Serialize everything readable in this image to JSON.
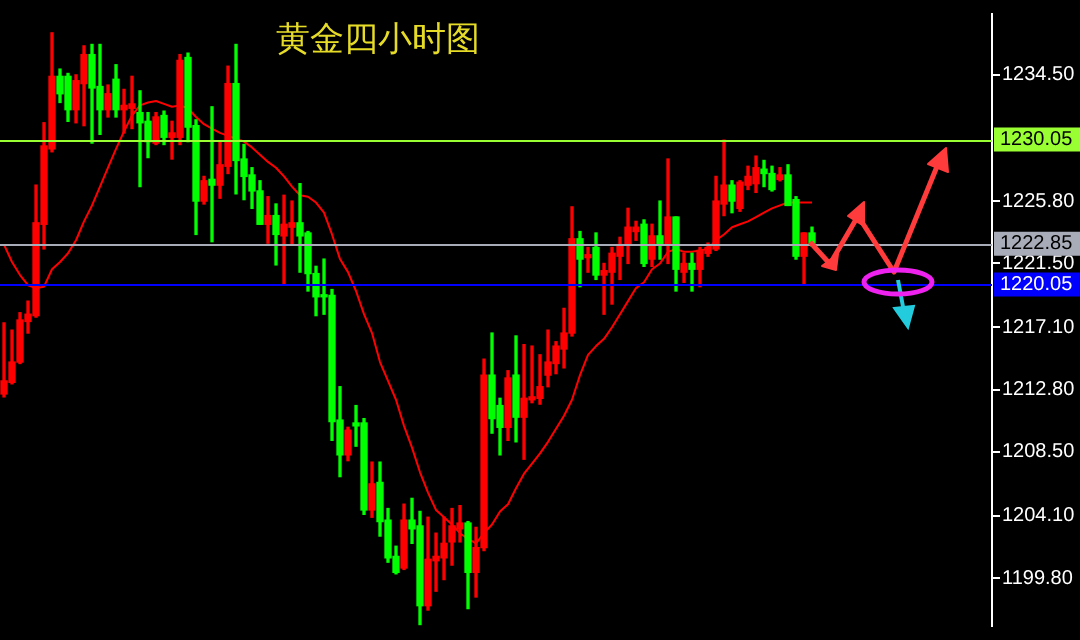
{
  "chart_data": {
    "type": "candlestick",
    "title": "黄金四小时图",
    "categories": [
      null,
      null,
      null,
      null,
      null,
      null,
      null,
      null,
      null,
      null,
      null,
      null,
      null,
      null,
      null,
      null,
      null,
      null,
      null,
      null,
      null,
      null,
      null,
      null,
      null,
      null,
      null,
      null,
      null,
      null,
      null,
      null,
      null,
      null,
      null,
      null,
      null,
      null,
      null,
      null,
      null,
      null,
      null,
      null,
      null,
      null,
      null,
      null,
      null,
      null,
      null,
      null,
      null,
      null,
      null,
      null,
      null,
      null,
      null,
      null,
      null,
      null,
      null,
      null,
      null,
      null,
      null,
      null,
      null,
      null,
      null,
      null,
      null,
      null,
      null,
      null,
      null,
      null,
      null,
      null,
      null,
      null,
      null,
      null,
      null,
      null,
      null,
      null,
      null,
      null,
      null,
      null,
      null,
      null,
      null,
      null,
      null,
      null,
      null,
      null,
      null,
      null,
      null,
      null,
      null,
      null,
      null,
      null,
      null,
      null,
      null,
      null,
      null,
      null,
      null,
      null,
      null,
      null,
      null,
      null,
      null,
      null,
      null,
      null
    ],
    "series": [
      {
        "type": "candlestick",
        "ohlc": [
          [
            1212.5,
            1217.4,
            1212.3,
            1213.4
          ],
          [
            1213.3,
            1216.9,
            1213.2,
            1214.7
          ],
          [
            1214.7,
            1218.1,
            1214.6,
            1217.6
          ],
          [
            1217.5,
            1218.9,
            1216.7,
            1218.0
          ],
          [
            1217.9,
            1226.9,
            1217.8,
            1224.3
          ],
          [
            1224.2,
            1231.2,
            1222.5,
            1229.6
          ],
          [
            1229.4,
            1237.4,
            1229.2,
            1234.4
          ],
          [
            1234.4,
            1234.9,
            1232.6,
            1233.2
          ],
          [
            1234.4,
            1234.6,
            1231.3,
            1232.1
          ],
          [
            1232.1,
            1234.5,
            1231.2,
            1234.1
          ],
          [
            1233.9,
            1236.5,
            1231.0,
            1235.9
          ],
          [
            1235.9,
            1236.6,
            1229.8,
            1233.6
          ],
          [
            1233.7,
            1236.6,
            1230.4,
            1232.1
          ],
          [
            1232.1,
            1233.8,
            1231.6,
            1233.2
          ],
          [
            1234.2,
            1235.2,
            1231.6,
            1232.1
          ],
          [
            1232.1,
            1233.5,
            1230.5,
            1232.4
          ],
          [
            1232.2,
            1234.4,
            1230.8,
            1232.5
          ],
          [
            1231.9,
            1233.4,
            1226.8,
            1231.2
          ],
          [
            1231.3,
            1231.9,
            1228.8,
            1229.9
          ],
          [
            1229.8,
            1231.9,
            1229.7,
            1231.6
          ],
          [
            1231.7,
            1232.0,
            1229.7,
            1230.2
          ],
          [
            1230.2,
            1231.3,
            1228.7,
            1230.5
          ],
          [
            1230.2,
            1235.9,
            1229.7,
            1235.5
          ],
          [
            1235.7,
            1236.0,
            1229.9,
            1230.9
          ],
          [
            1231.0,
            1231.4,
            1223.5,
            1225.8
          ],
          [
            1225.8,
            1227.5,
            1225.6,
            1227.2
          ],
          [
            1227.3,
            1232.3,
            1223.0,
            1226.9
          ],
          [
            1226.9,
            1229.9,
            1226.0,
            1228.3
          ],
          [
            1228.2,
            1235.1,
            1227.7,
            1233.9
          ],
          [
            1233.9,
            1236.6,
            1226.3,
            1228.6
          ],
          [
            1228.7,
            1229.7,
            1225.9,
            1227.5
          ],
          [
            1227.6,
            1228.1,
            1225.3,
            1226.5
          ],
          [
            1226.5,
            1227.2,
            1224.2,
            1224.2
          ],
          [
            1224.2,
            1226.1,
            1222.9,
            1224.8
          ],
          [
            1224.8,
            1225.6,
            1221.4,
            1223.5
          ],
          [
            1223.4,
            1226.2,
            1220.1,
            1224.2
          ],
          [
            1224.0,
            1225.8,
            1222.8,
            1224.3
          ],
          [
            1224.3,
            1227.0,
            1220.9,
            1223.4
          ],
          [
            1223.6,
            1223.7,
            1219.6,
            1220.8
          ],
          [
            1220.8,
            1221.3,
            1217.9,
            1219.2
          ],
          [
            1219.3,
            1221.8,
            1218.0,
            1219.2
          ],
          [
            1219.3,
            1219.7,
            1209.3,
            1210.6
          ],
          [
            1210.7,
            1213.0,
            1206.8,
            1208.3
          ],
          [
            1208.3,
            1210.2,
            1207.9,
            1210.0
          ],
          [
            1210.5,
            1211.7,
            1208.9,
            1210.3
          ],
          [
            1210.5,
            1210.8,
            1204.2,
            1204.5
          ],
          [
            1204.5,
            1207.8,
            1204.0,
            1206.3
          ],
          [
            1206.4,
            1207.8,
            1202.7,
            1203.7
          ],
          [
            1203.8,
            1204.6,
            1200.9,
            1201.2
          ],
          [
            1201.3,
            1202.0,
            1200.1,
            1200.2
          ],
          [
            1200.5,
            1204.9,
            1200.4,
            1203.8
          ],
          [
            1203.8,
            1205.3,
            1202.2,
            1203.2
          ],
          [
            1203.4,
            1204.4,
            1196.6,
            1197.9
          ],
          [
            1197.9,
            1204.0,
            1197.6,
            1201.1
          ],
          [
            1201.0,
            1202.9,
            1198.9,
            1201.3
          ],
          [
            1201.2,
            1204.0,
            1199.7,
            1202.2
          ],
          [
            1202.3,
            1204.6,
            1200.7,
            1203.4
          ],
          [
            1203.2,
            1204.8,
            1202.3,
            1203.6
          ],
          [
            1203.6,
            1203.7,
            1197.7,
            1200.2
          ],
          [
            1200.2,
            1203.3,
            1198.5,
            1201.9
          ],
          [
            1201.9,
            1214.9,
            1201.7,
            1213.8
          ],
          [
            1213.8,
            1216.7,
            1209.8,
            1210.8
          ],
          [
            1211.7,
            1212.2,
            1208.3,
            1210.2
          ],
          [
            1210.2,
            1214.1,
            1209.3,
            1213.6
          ],
          [
            1213.8,
            1216.5,
            1209.2,
            1210.9
          ],
          [
            1210.9,
            1215.9,
            1208.0,
            1212.2
          ],
          [
            1212.1,
            1215.8,
            1211.9,
            1212.3
          ],
          [
            1212.2,
            1215.2,
            1211.8,
            1213.0
          ],
          [
            1213.8,
            1216.9,
            1213.0,
            1214.7
          ],
          [
            1214.6,
            1216.1,
            1213.9,
            1215.8
          ],
          [
            1215.6,
            1218.4,
            1214.3,
            1216.7
          ],
          [
            1216.7,
            1225.4,
            1216.5,
            1223.2
          ],
          [
            1223.2,
            1223.7,
            1219.9,
            1221.8
          ],
          [
            1221.9,
            1222.6,
            1220.9,
            1222.1
          ],
          [
            1222.6,
            1223.6,
            1220.4,
            1220.7
          ],
          [
            1220.7,
            1221.5,
            1218.0,
            1221.0
          ],
          [
            1220.9,
            1222.6,
            1218.7,
            1222.2
          ],
          [
            1222.0,
            1223.3,
            1220.4,
            1222.8
          ],
          [
            1222.8,
            1225.3,
            1221.5,
            1224.0
          ],
          [
            1223.7,
            1224.4,
            1223.1,
            1224.0
          ],
          [
            1224.2,
            1224.5,
            1221.3,
            1221.5
          ],
          [
            1221.8,
            1224.2,
            1221.3,
            1223.4
          ],
          [
            1223.4,
            1225.8,
            1221.8,
            1222.8
          ],
          [
            1222.8,
            1228.7,
            1221.5,
            1224.7
          ],
          [
            1224.7,
            1224.7,
            1219.6,
            1221.1
          ],
          [
            1220.9,
            1222.2,
            1220.2,
            1221.5
          ],
          [
            1221.5,
            1222.2,
            1219.6,
            1221.1
          ],
          [
            1221.1,
            1222.6,
            1219.9,
            1222.4
          ],
          [
            1222.2,
            1222.9,
            1222.0,
            1222.6
          ],
          [
            1222.5,
            1227.5,
            1222.4,
            1225.8
          ],
          [
            1225.6,
            1230.0,
            1224.8,
            1226.9
          ],
          [
            1226.9,
            1227.2,
            1225.0,
            1225.8
          ],
          [
            1225.3,
            1227.2,
            1225.1,
            1227.1
          ],
          [
            1226.9,
            1228.2,
            1226.6,
            1227.5
          ],
          [
            1227.0,
            1228.9,
            1226.4,
            1228.1
          ],
          [
            1228.0,
            1228.6,
            1226.8,
            1227.7
          ],
          [
            1227.7,
            1228.2,
            1226.5,
            1226.6
          ],
          [
            1227.3,
            1228.1,
            1227.2,
            1227.6
          ],
          [
            1227.6,
            1228.3,
            1225.5,
            1225.5
          ],
          [
            1225.9,
            1226.1,
            1221.8,
            1222.0
          ],
          [
            1222.0,
            1223.6,
            1220.1,
            1223.6
          ],
          [
            1223.6,
            1224.0,
            1222.7,
            1222.9
          ],
          null,
          null,
          null,
          null,
          null,
          null,
          null,
          null,
          null,
          null,
          null,
          null,
          null,
          null,
          null,
          null,
          null,
          null,
          null,
          null,
          null,
          null
        ],
        "colors": [
          "#ff0000",
          "#ff0000",
          "#ff0000",
          "#ff0000",
          "#ff0000",
          "#ff0000",
          "#ff0000",
          "#00ff00",
          "#00ff00",
          "#ff0000",
          "#ff0000",
          "#00ff00",
          "#00ff00",
          "#ff0000",
          "#00ff00",
          "#ff0000",
          "#ff0000",
          "#00ff00",
          "#00ff00",
          "#ff0000",
          "#00ff00",
          "#ff0000",
          "#ff0000",
          "#00ff00",
          "#00ff00",
          "#ff0000",
          "#00ff00",
          "#ff0000",
          "#ff0000",
          "#00ff00",
          "#00ff00",
          "#00ff00",
          "#00ff00",
          "#ff0000",
          "#00ff00",
          "#ff0000",
          "#ff0000",
          "#00ff00",
          "#00ff00",
          "#00ff00",
          "#00ff00",
          "#00ff00",
          "#00ff00",
          "#ff0000",
          "#00ff00",
          "#00ff00",
          "#ff0000",
          "#00ff00",
          "#00ff00",
          "#00ff00",
          "#ff0000",
          "#00ff00",
          "#00ff00",
          "#ff0000",
          "#ff0000",
          "#ff0000",
          "#ff0000",
          "#ff0000",
          "#00ff00",
          "#ff0000",
          "#ff0000",
          "#00ff00",
          "#00ff00",
          "#ff0000",
          "#00ff00",
          "#ff0000",
          "#ff0000",
          "#ff0000",
          "#ff0000",
          "#ff0000",
          "#ff0000",
          "#ff0000",
          "#00ff00",
          "#ff0000",
          "#00ff00",
          "#ff0000",
          "#ff0000",
          "#ff0000",
          "#ff0000",
          "#ff0000",
          "#00ff00",
          "#ff0000",
          "#00ff00",
          "#ff0000",
          "#00ff00",
          "#ff0000",
          "#00ff00",
          "#ff0000",
          "#ff0000",
          "#ff0000",
          "#ff0000",
          "#00ff00",
          "#ff0000",
          "#ff0000",
          "#ff0000",
          "#00ff00",
          "#00ff00",
          "#ff0000",
          "#00ff00",
          "#00ff00",
          "#ff0000",
          "#00ff00",
          null,
          null,
          null,
          null,
          null,
          null,
          null,
          null,
          null,
          null,
          null,
          null,
          null,
          null,
          null,
          null,
          null,
          null,
          null,
          null,
          null,
          null
        ]
      },
      {
        "type": "line",
        "color": "#ff0000",
        "values": [
          1222.8,
          1221.6,
          1220.7,
          1220.0,
          1219.8,
          1219.9,
          1221.1,
          1221.6,
          1222.2,
          1223.1,
          1224.4,
          1225.5,
          1226.8,
          1228.1,
          1229.4,
          1230.6,
          1231.7,
          1232.4,
          1232.6,
          1232.7,
          1232.5,
          1232.3,
          1232.4,
          1232.2,
          1231.6,
          1231.1,
          1230.8,
          1230.5,
          1230.3,
          1230.1,
          1229.9,
          1229.5,
          1229.0,
          1228.5,
          1228.1,
          1227.5,
          1226.8,
          1226.2,
          1226.1,
          1225.7,
          1225.0,
          1223.5,
          1221.8,
          1220.9,
          1219.6,
          1218.0,
          1216.7,
          1214.7,
          1213.4,
          1212.1,
          1210.3,
          1208.8,
          1207.1,
          1205.7,
          1204.5,
          1204.0,
          1203.5,
          1202.9,
          1202.5,
          1202.2,
          1202.9,
          1203.5,
          1204.4,
          1204.9,
          1206.0,
          1207.0,
          1207.7,
          1208.4,
          1209.2,
          1210.1,
          1211.0,
          1212.1,
          1213.8,
          1215.2,
          1215.8,
          1216.3,
          1217.1,
          1218.0,
          1218.9,
          1219.8,
          1220.2,
          1221.1,
          1221.5,
          1222.3,
          1222.5,
          1222.3,
          1222.3,
          1222.4,
          1222.5,
          1223.1,
          1223.5,
          1224.0,
          1224.2,
          1224.4,
          1224.7,
          1225.0,
          1225.3,
          1225.5,
          1225.7,
          1225.7,
          1225.7,
          1225.7,
          null,
          null,
          null,
          null,
          null,
          null,
          null,
          null,
          null,
          null,
          null,
          null,
          null,
          null,
          null,
          null,
          null,
          null,
          null,
          null,
          null,
          null
        ]
      }
    ],
    "ylim": [
      1196.5,
      1238.7
    ],
    "yticks": [
      {
        "value": 1199.8,
        "label": "1199.80"
      },
      {
        "value": 1204.1,
        "label": "1204.10"
      },
      {
        "value": 1208.5,
        "label": "1208.50"
      },
      {
        "value": 1212.8,
        "label": "1212.80"
      },
      {
        "value": 1217.1,
        "label": "1217.10"
      },
      {
        "value": 1221.5,
        "label": "1221.50"
      },
      {
        "value": 1225.8,
        "label": "1225.80"
      },
      {
        "value": 1234.5,
        "label": "1234.50"
      }
    ],
    "ref_lines": [
      {
        "axis": "y",
        "value": 1230.05,
        "label": "1230.05",
        "color": "#99ff33"
      },
      {
        "axis": "y",
        "value": 1222.85,
        "label": "1222.85",
        "color": "#a8acb8"
      },
      {
        "axis": "y",
        "value": 1220.05,
        "label": "1220.05",
        "color": "#0000ff"
      }
    ],
    "tick_labels": "y",
    "grid": false,
    "legend": false
  }
}
